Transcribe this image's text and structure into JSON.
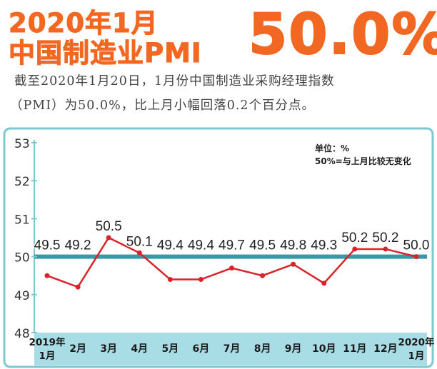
{
  "headline": {
    "line1": "2020年1月",
    "line2": "中国制造业PMI",
    "value": "50.0%"
  },
  "description": {
    "line1": "截至2020年1月20日，1月份中国制造业采购经理指数",
    "line2": "（PMI）为50.0%，比上月小幅回落0.2个百分点。"
  },
  "colors": {
    "headline": "#f26722",
    "line": "#d9232a",
    "reference": "#1e8f9a",
    "frame": "#7ec8d3",
    "axis_band": "#a8dde6"
  },
  "chart_data": {
    "type": "line",
    "title": "",
    "xlabel": "",
    "ylabel": "",
    "ylim": [
      48,
      53
    ],
    "yticks": [
      "48",
      "49",
      "50",
      "51",
      "52",
      "53"
    ],
    "grid": false,
    "legend": "none",
    "annotation": {
      "unit": "单位：%",
      "note": "50%=与上月比较无变化"
    },
    "reference_line": 50,
    "categories": [
      [
        "2019年",
        "1月"
      ],
      [
        "2月"
      ],
      [
        "3月"
      ],
      [
        "4月"
      ],
      [
        "5月"
      ],
      [
        "6月"
      ],
      [
        "7月"
      ],
      [
        "8月"
      ],
      [
        "9月"
      ],
      [
        "10月"
      ],
      [
        "11月"
      ],
      [
        "12月"
      ],
      [
        "2020年",
        "1月"
      ]
    ],
    "values": [
      49.5,
      49.2,
      50.5,
      50.1,
      49.4,
      49.4,
      49.7,
      49.5,
      49.8,
      49.3,
      50.2,
      50.2,
      50.0
    ],
    "value_labels": [
      "49.5",
      "49.2",
      "50.5",
      "50.1",
      "49.4",
      "49.4",
      "49.7",
      "49.5",
      "49.8",
      "49.3",
      "50.2",
      "50.2",
      "50.0"
    ]
  }
}
